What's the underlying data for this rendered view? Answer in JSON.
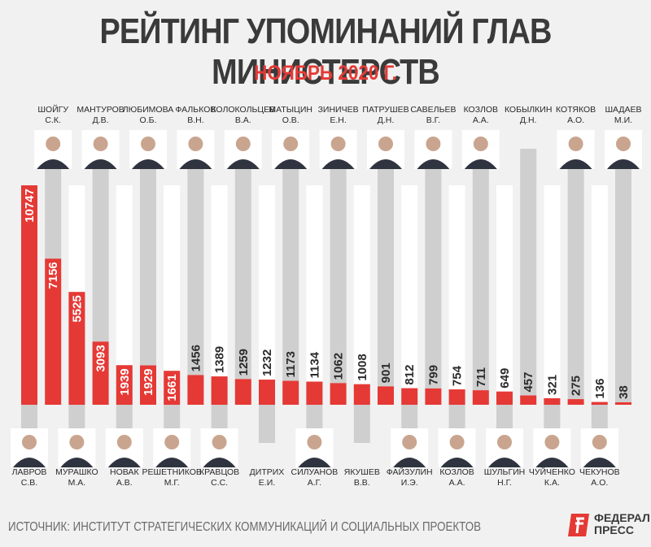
{
  "header": {
    "title": "РЕЙТИНГ УПОМИНАНИЙ ГЛАВ МИНИСТЕРСТВ",
    "subtitle": "НОЯБРЬ 2020 Г."
  },
  "footer": {
    "source": "ИСТОЧНИК: ИНСТИТУТ СТРАТЕГИЧЕСКИХ КОММУНИКАЦИЙ И СОЦИАЛЬНЫХ ПРОЕКТОВ",
    "logo_line1": "ФЕДЕРАЛ",
    "logo_line2": "ПРЕСС"
  },
  "colors": {
    "bar": "#e53935",
    "track": "#cfcfcf",
    "track_light": "#ffffff",
    "background": "#f1f1f1"
  },
  "chart_data": {
    "type": "bar",
    "title": "РЕЙТИНГ УПОМИНАНИЙ ГЛАВ МИНИСТЕРСТВ",
    "subtitle": "НОЯБРЬ 2020 Г.",
    "ylim": [
      0,
      11000
    ],
    "grid": false,
    "categories": [
      {
        "surname": "ЛАВРОВ",
        "initials": "С.В.",
        "position": "bottom"
      },
      {
        "surname": "ШОЙГУ",
        "initials": "С.К.",
        "position": "top"
      },
      {
        "surname": "МУРАШКО",
        "initials": "М.А.",
        "position": "bottom"
      },
      {
        "surname": "МАНТУРОВ",
        "initials": "Д.В.",
        "position": "top"
      },
      {
        "surname": "НОВАК",
        "initials": "А.В.",
        "position": "bottom"
      },
      {
        "surname": "ЛЮБИМОВА",
        "initials": "О.Б.",
        "position": "top"
      },
      {
        "surname": "РЕШЕТНИКОВ",
        "initials": "М.Г.",
        "position": "bottom"
      },
      {
        "surname": "ФАЛЬКОВ",
        "initials": "В.Н.",
        "position": "top"
      },
      {
        "surname": "КРАВЦОВ",
        "initials": "С.С.",
        "position": "bottom"
      },
      {
        "surname": "КОЛОКОЛЬЦЕВ",
        "initials": "В.А.",
        "position": "top"
      },
      {
        "surname": "ДИТРИХ",
        "initials": "Е.И.",
        "position": "bottom"
      },
      {
        "surname": "МАТЫЦИН",
        "initials": "О.В.",
        "position": "top"
      },
      {
        "surname": "СИЛУАНОВ",
        "initials": "А.Г.",
        "position": "bottom"
      },
      {
        "surname": "ЗИНИЧЕВ",
        "initials": "Е.Н.",
        "position": "top"
      },
      {
        "surname": "ЯКУШЕВ",
        "initials": "В.В.",
        "position": "bottom"
      },
      {
        "surname": "ПАТРУШЕВ",
        "initials": "Д.Н.",
        "position": "top"
      },
      {
        "surname": "ФАЙЗУЛИН",
        "initials": "И.Э.",
        "position": "bottom"
      },
      {
        "surname": "САВЕЛЬЕВ",
        "initials": "В.Г.",
        "position": "top"
      },
      {
        "surname": "КОЗЛОВ",
        "initials": "А.А.",
        "position": "bottom"
      },
      {
        "surname": "КОЗЛОВ",
        "initials": "А.А.",
        "position": "top"
      },
      {
        "surname": "ШУЛЬГИН",
        "initials": "Н.Г.",
        "position": "bottom"
      },
      {
        "surname": "КОБЫЛКИН",
        "initials": "Д.Н.",
        "position": "top"
      },
      {
        "surname": "ЧУЙЧЕНКО",
        "initials": "К.А.",
        "position": "bottom"
      },
      {
        "surname": "КОТЯКОВ",
        "initials": "А.О.",
        "position": "top"
      },
      {
        "surname": "ЧЕКУНОВ",
        "initials": "А.О.",
        "position": "bottom"
      },
      {
        "surname": "ШАДАЕВ",
        "initials": "М.И.",
        "position": "top"
      }
    ],
    "values": [
      10747,
      7156,
      5525,
      3093,
      1939,
      1929,
      1661,
      1456,
      1389,
      1259,
      1232,
      1173,
      1134,
      1062,
      1008,
      901,
      812,
      799,
      754,
      711,
      649,
      457,
      321,
      275,
      136,
      38
    ],
    "photos": [
      true,
      true,
      true,
      true,
      true,
      true,
      true,
      true,
      true,
      true,
      false,
      true,
      true,
      true,
      false,
      true,
      true,
      true,
      true,
      true,
      true,
      false,
      true,
      true,
      true,
      true
    ]
  }
}
